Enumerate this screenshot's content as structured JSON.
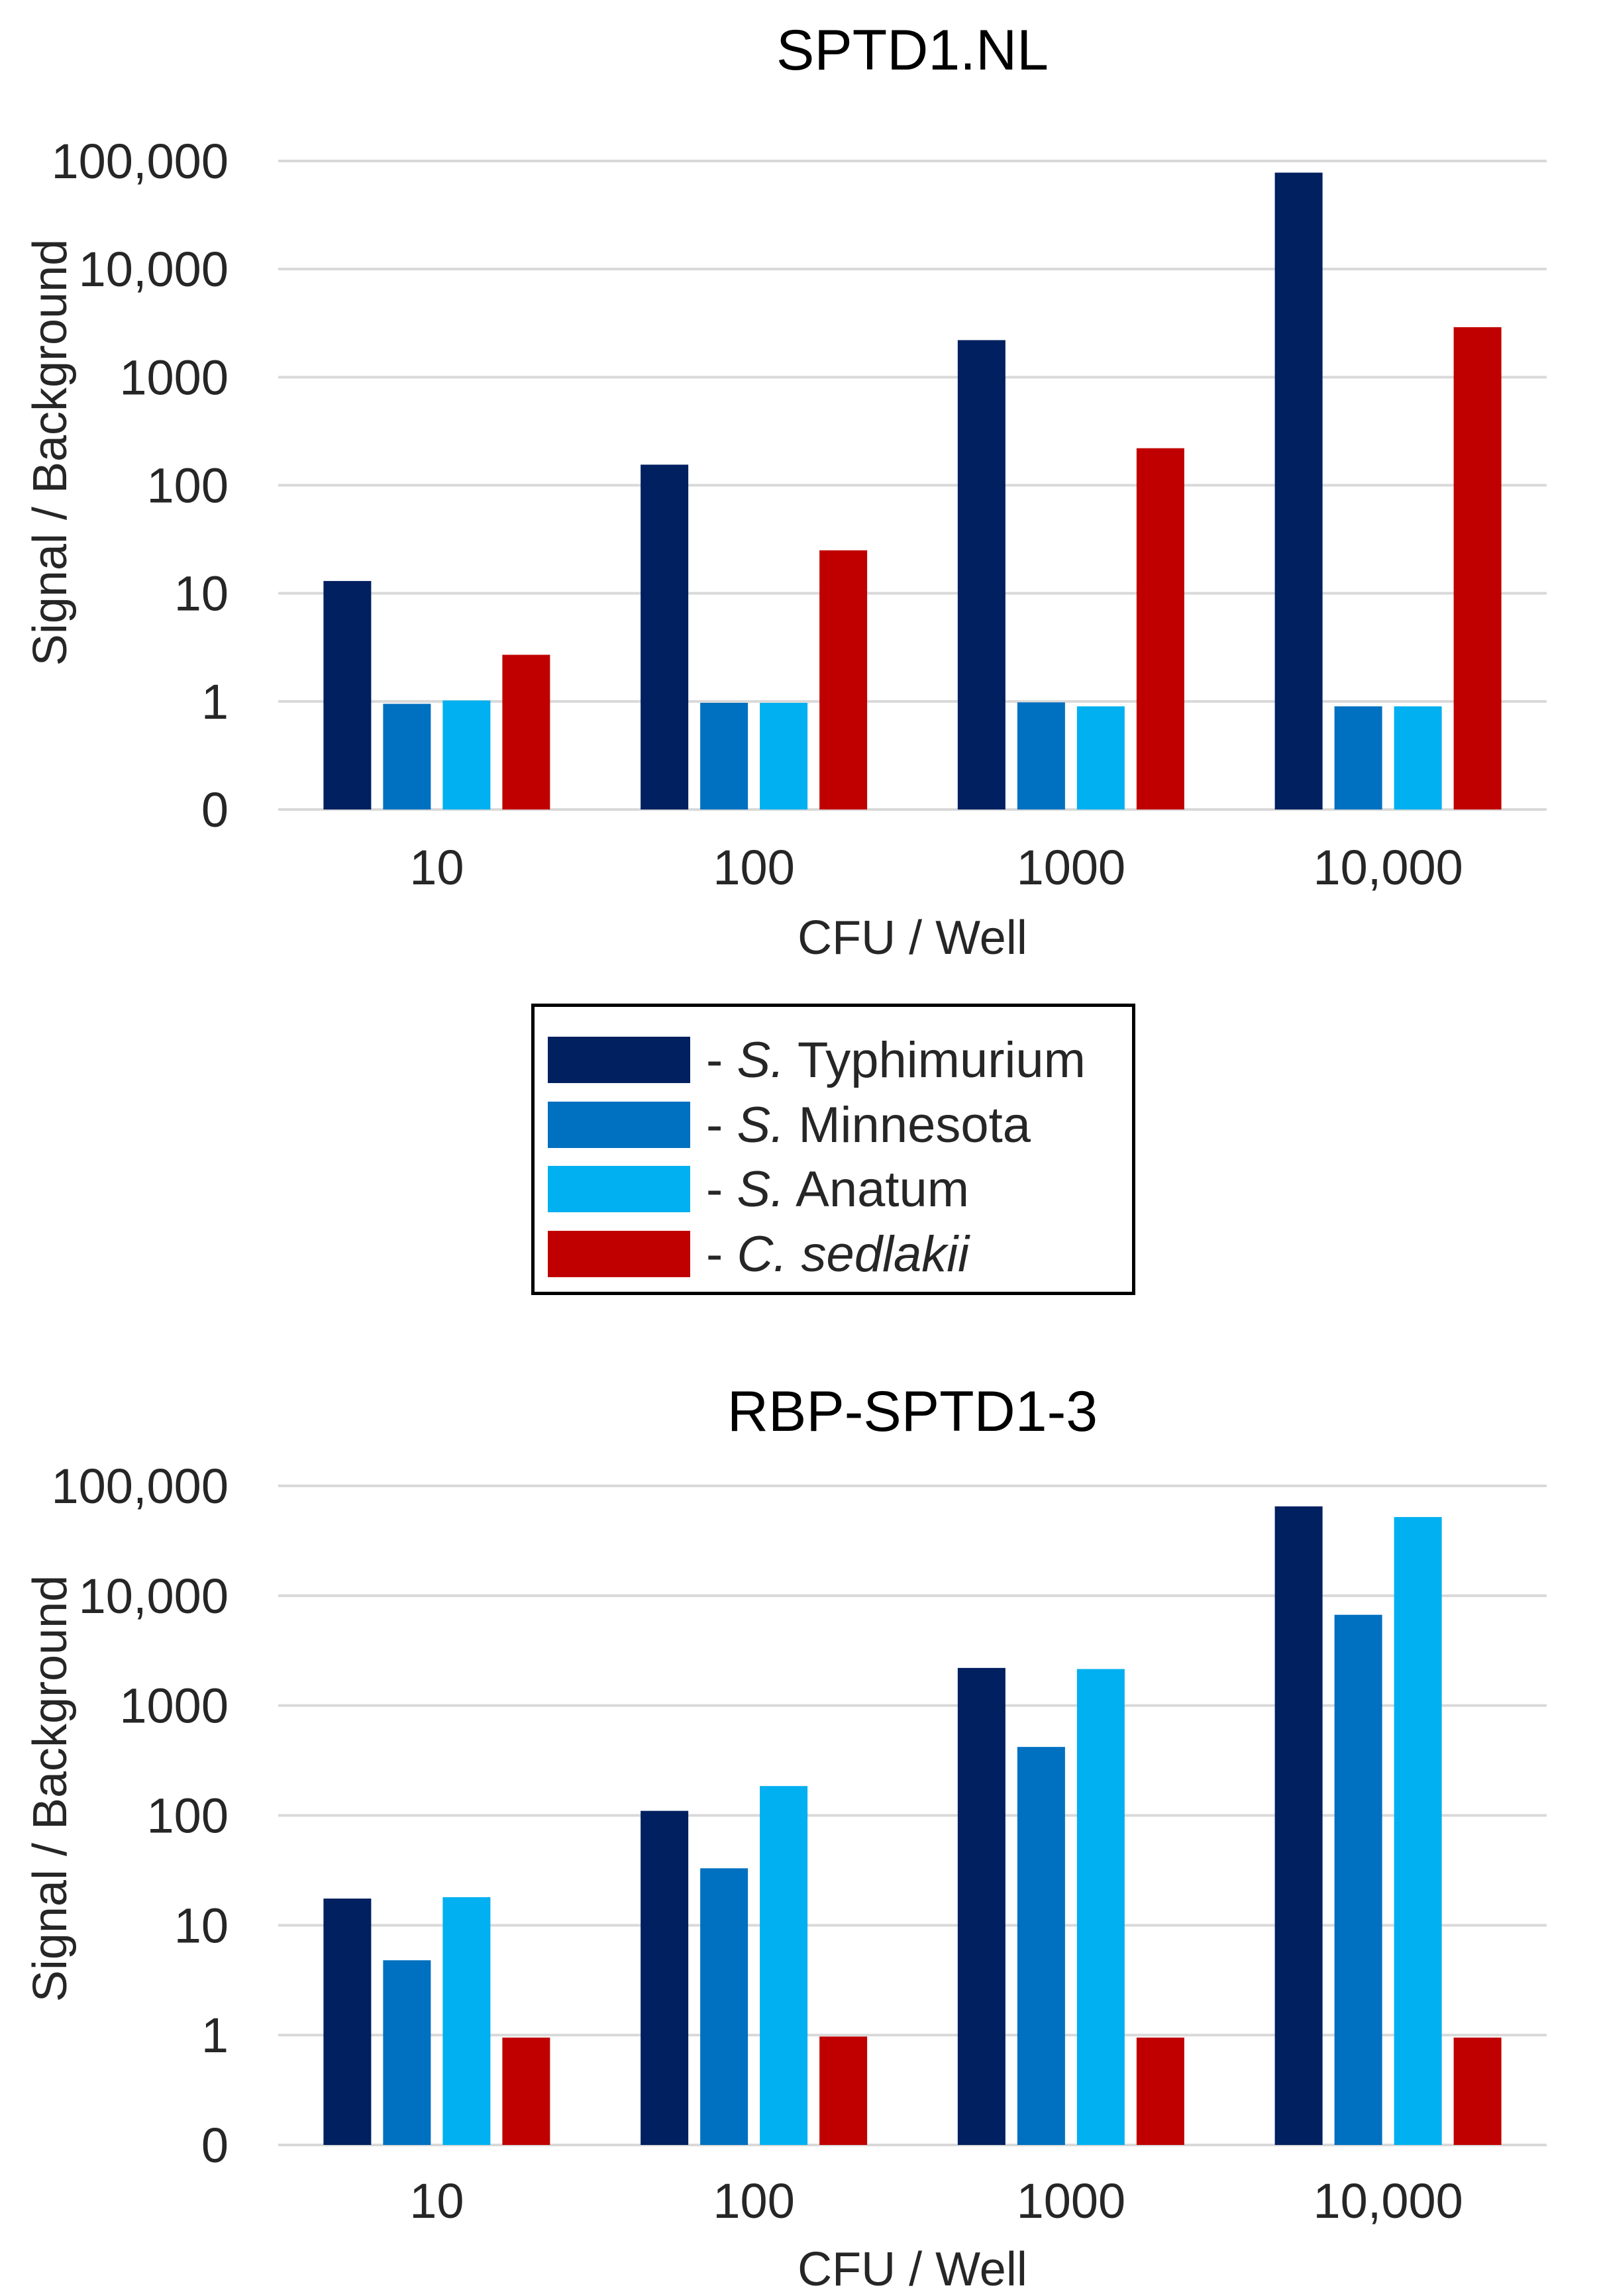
{
  "chart_data": [
    {
      "type": "bar",
      "title": "SPTD1.NL",
      "xlabel": "CFU / Well",
      "ylabel": "Signal / Background",
      "yscale": "log",
      "ylim": [
        0.1,
        100000
      ],
      "ytick_values": [
        0.1,
        1,
        10,
        100,
        1000,
        10000,
        100000
      ],
      "ytick_labels": [
        "0",
        "1",
        "10",
        "100",
        "1000",
        "10,000",
        "100,000"
      ],
      "categories": [
        "10",
        "100",
        "1000",
        "10,000"
      ],
      "series": [
        {
          "name": "S. Typhimurium",
          "color": "#002060",
          "values": [
            13,
            155,
            2200,
            78000
          ]
        },
        {
          "name": "S. Minnesota",
          "color": "#0070C0",
          "values": [
            0.95,
            0.97,
            0.98,
            0.9
          ]
        },
        {
          "name": "S. Anatum",
          "color": "#00B0F0",
          "values": [
            1.02,
            0.97,
            0.9,
            0.9
          ]
        },
        {
          "name": "C. sedlakii",
          "color": "#C00000",
          "values": [
            2.7,
            25,
            220,
            2900
          ]
        }
      ]
    },
    {
      "type": "bar",
      "title": "RBP-SPTD1-3",
      "xlabel": "CFU / Well",
      "ylabel": "Signal / Background",
      "yscale": "log",
      "ylim": [
        0.1,
        100000
      ],
      "ytick_values": [
        0.1,
        1,
        10,
        100,
        1000,
        10000,
        100000
      ],
      "ytick_labels": [
        "0",
        "1",
        "10",
        "100",
        "1000",
        "10,000",
        "100,000"
      ],
      "categories": [
        "10",
        "100",
        "1000",
        "10,000"
      ],
      "series": [
        {
          "name": "S. Typhimurium",
          "color": "#002060",
          "values": [
            17.5,
            110,
            2200,
            65000
          ]
        },
        {
          "name": "S. Minnesota",
          "color": "#0070C0",
          "values": [
            4.8,
            33,
            420,
            6700
          ]
        },
        {
          "name": "S. Anatum",
          "color": "#00B0F0",
          "values": [
            18,
            185,
            2150,
            52000
          ]
        },
        {
          "name": "C. sedlakii",
          "color": "#C00000",
          "values": [
            0.95,
            0.97,
            0.95,
            0.95
          ]
        }
      ]
    }
  ],
  "legend": {
    "entries": [
      {
        "prefix": "- ",
        "italic": "S.",
        "rest": " Typhimurium",
        "color": "#002060"
      },
      {
        "prefix": "- ",
        "italic": "S.",
        "rest": " Minnesota",
        "color": "#0070C0"
      },
      {
        "prefix": "- ",
        "italic": "S.",
        "rest": " Anatum",
        "color": "#00B0F0"
      },
      {
        "prefix": "- ",
        "italic": "C. sedlakii",
        "rest": "",
        "color": "#C00000"
      }
    ]
  },
  "colors": {
    "grid": "#D9D9D9",
    "axis_text": "#262626"
  }
}
